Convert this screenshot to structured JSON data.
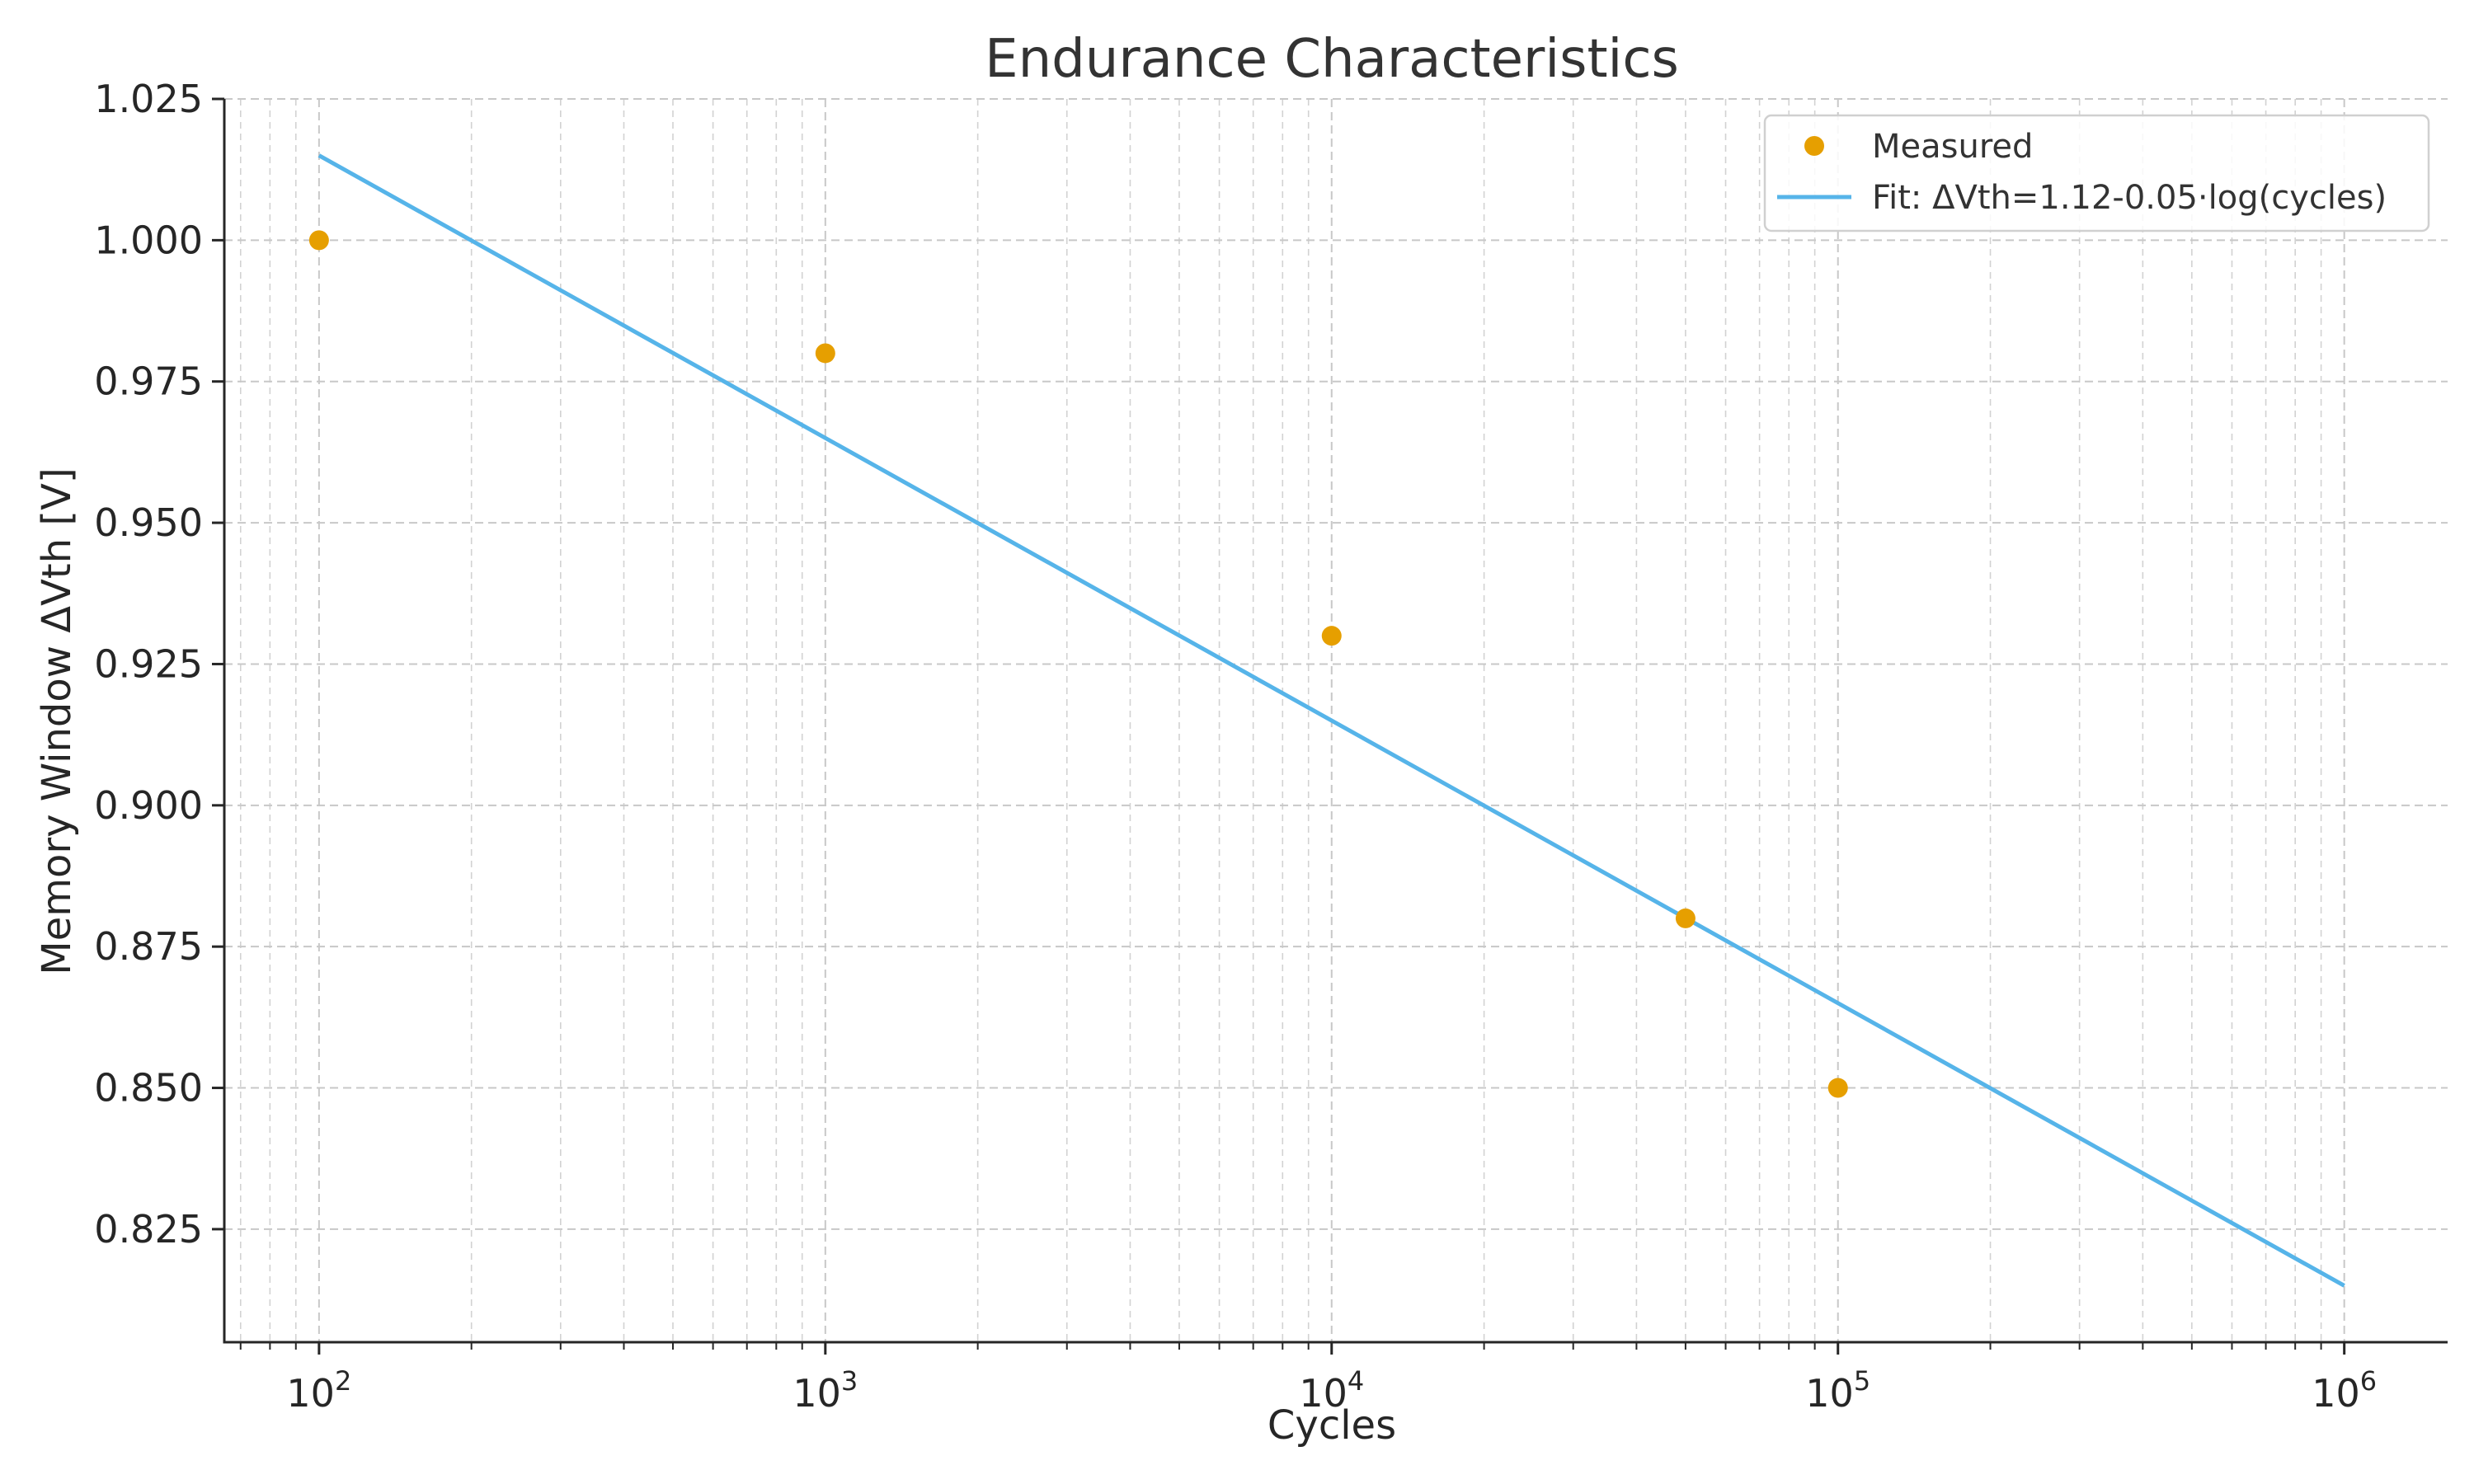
{
  "chart_data": {
    "type": "scatter",
    "title": "Endurance Characteristics",
    "xlabel": "Cycles",
    "ylabel": "Memory Window ΔVth [V]",
    "x_scale": "log",
    "xlim": [
      65,
      1600000
    ],
    "ylim": [
      0.805,
      1.025
    ],
    "x_ticks": [
      {
        "value": 100,
        "base": "10",
        "exp": "2"
      },
      {
        "value": 1000,
        "base": "10",
        "exp": "3"
      },
      {
        "value": 10000,
        "base": "10",
        "exp": "4"
      },
      {
        "value": 100000,
        "base": "10",
        "exp": "5"
      },
      {
        "value": 1000000,
        "base": "10",
        "exp": "6"
      }
    ],
    "y_ticks": [
      "0.825",
      "0.850",
      "0.875",
      "0.900",
      "0.925",
      "0.950",
      "0.975",
      "1.000",
      "1.025"
    ],
    "grid": true,
    "legend_position": "top-right",
    "series": [
      {
        "name": "Measured",
        "kind": "scatter",
        "color": "#E69F00",
        "x": [
          100,
          1000,
          10000,
          50000,
          100000
        ],
        "y": [
          1.0,
          0.98,
          0.93,
          0.88,
          0.85
        ]
      },
      {
        "name": "Fit: ΔVth=1.12-0.05·log(cycles)",
        "kind": "line",
        "color": "#56B4E9",
        "x": [
          100,
          1000000
        ],
        "y": [
          1.015,
          0.815
        ]
      }
    ]
  }
}
